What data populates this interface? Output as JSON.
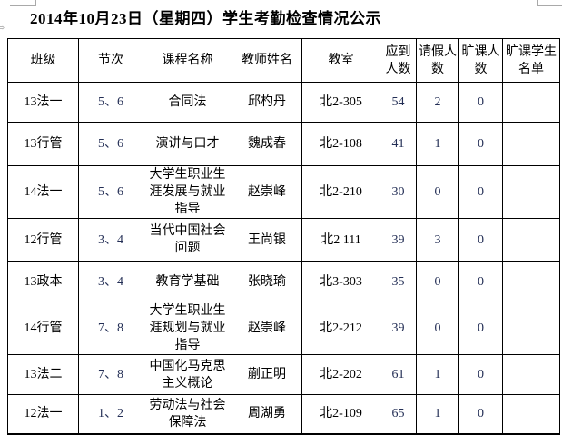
{
  "title": "2014年10月23日（星期四）学生考勤检查情况公示",
  "table": {
    "headers": [
      "班级",
      "节次",
      "课程名称",
      "教师姓名",
      "教室",
      "应到人数",
      "请假人数",
      "旷课人数",
      "旷课学生名单"
    ],
    "rows": [
      {
        "class": "13法一",
        "period": "5、6",
        "course": "合同法",
        "teacher": "邱杓丹",
        "room": "北2-305",
        "expected": "54",
        "leave": "2",
        "absent": "0",
        "absent_students": ""
      },
      {
        "class": "13行管",
        "period": "5、6",
        "course": "演讲与口才",
        "teacher": "魏成春",
        "room": "北2-108",
        "expected": "41",
        "leave": "1",
        "absent": "0",
        "absent_students": ""
      },
      {
        "class": "14法一",
        "period": "5、6",
        "course": "大学生职业生涯发展与就业指导",
        "teacher": "赵崇峰",
        "room": "北2-210",
        "expected": "30",
        "leave": "0",
        "absent": "0",
        "absent_students": ""
      },
      {
        "class": "12行管",
        "period": "3、4",
        "course": "当代中国社会问题",
        "teacher": "王尚银",
        "room": "北2 111",
        "expected": "39",
        "leave": "3",
        "absent": "0",
        "absent_students": ""
      },
      {
        "class": "13政本",
        "period": "3、4",
        "course": "教育学基础",
        "teacher": "张晓瑜",
        "room": "北3-303",
        "expected": "35",
        "leave": "0",
        "absent": "0",
        "absent_students": ""
      },
      {
        "class": "14行管",
        "period": "7、8",
        "course": "大学生职业生涯规划与就业指导",
        "teacher": "赵崇峰",
        "room": "北2-212",
        "expected": "39",
        "leave": "0",
        "absent": "0",
        "absent_students": ""
      },
      {
        "class": "13法二",
        "period": "7、8",
        "course": "中国化马克思主义概论",
        "teacher": "蒯正明",
        "room": "北2-202",
        "expected": "61",
        "leave": "1",
        "absent": "0",
        "absent_students": ""
      },
      {
        "class": "12法一",
        "period": "1、2",
        "course": "劳动法与社会保障法",
        "teacher": "周湖勇",
        "room": "北2-109",
        "expected": "65",
        "leave": "1",
        "absent": "0",
        "absent_students": ""
      }
    ]
  },
  "colors": {
    "grid_line": "#000000",
    "text": "#000000",
    "numeral_text": "#232e55",
    "artifact_gray": "#a9a9a9",
    "background": "#ffffff"
  },
  "icons": {
    "margin_arrow": "⇒"
  }
}
